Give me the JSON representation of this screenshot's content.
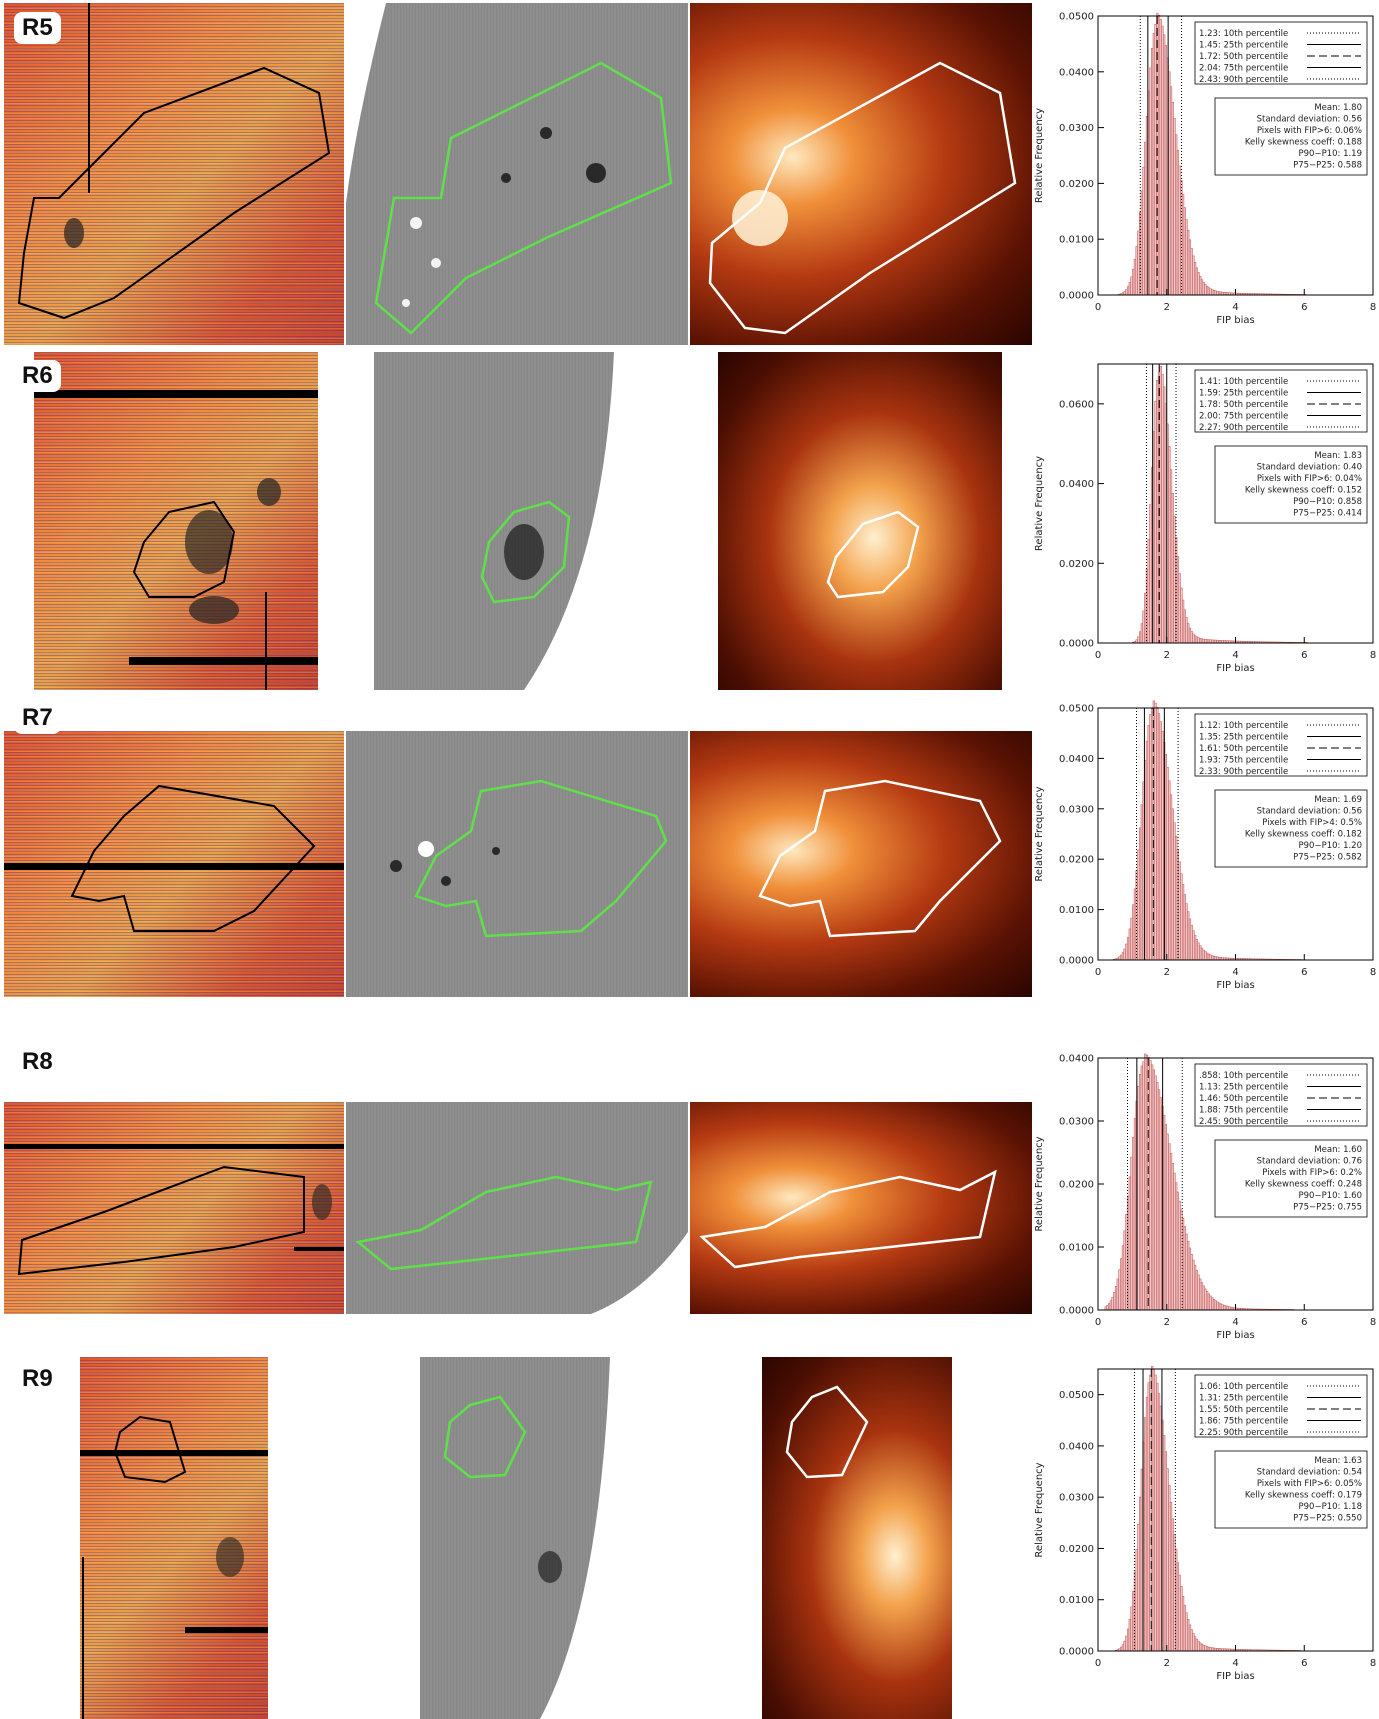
{
  "chart_data": [
    {
      "region": "R5",
      "type": "bar",
      "ylabel": "Relative Frequency",
      "xlabel": "FIP bias",
      "xlim": [
        0,
        8
      ],
      "ylim": [
        0,
        0.05
      ],
      "xticks": [
        "0",
        "2",
        "4",
        "6",
        "8"
      ],
      "yticks": [
        "0.0000",
        "0.0100",
        "0.0200",
        "0.0300",
        "0.0400",
        "0.0500"
      ],
      "percentiles": [
        {
          "value": 1.23,
          "text": "1.23: 10th percentile",
          "style": "dotted"
        },
        {
          "value": 1.45,
          "text": "1.45: 25th percentile",
          "style": "solid"
        },
        {
          "value": 1.72,
          "text": "1.72: 50th percentile",
          "style": "dashed"
        },
        {
          "value": 2.04,
          "text": "2.04: 75th percentile",
          "style": "solid"
        },
        {
          "value": 2.43,
          "text": "2.43: 90th percentile",
          "style": "dotted"
        }
      ],
      "stats": [
        "Mean: 1.80",
        "Standard deviation: 0.56",
        "Pixels with FIP>6: 0.06%",
        "Kelly skewness coeff: 0.188",
        "P90−P10: 1.19",
        "P75−P25: 0.588"
      ],
      "mode": 1.72,
      "peak": 0.049,
      "sigma_left": 0.32,
      "sigma_right": 0.52
    },
    {
      "region": "R6",
      "type": "bar",
      "ylabel": "Relative Frequency",
      "xlabel": "FIP bias",
      "xlim": [
        0,
        8
      ],
      "ylim": [
        0,
        0.07
      ],
      "xticks": [
        "0",
        "2",
        "4",
        "6",
        "8"
      ],
      "yticks": [
        "0.0000",
        "0.0200",
        "0.0400",
        "0.0600"
      ],
      "percentiles": [
        {
          "value": 1.41,
          "text": "1.41: 10th percentile",
          "style": "dotted"
        },
        {
          "value": 1.59,
          "text": "1.59: 25th percentile",
          "style": "solid"
        },
        {
          "value": 1.78,
          "text": "1.78: 50th percentile",
          "style": "dashed"
        },
        {
          "value": 2.0,
          "text": "2.00: 75th percentile",
          "style": "solid"
        },
        {
          "value": 2.27,
          "text": "2.27: 90th percentile",
          "style": "dotted"
        }
      ],
      "stats": [
        "Mean: 1.83",
        "Standard deviation: 0.40",
        "Pixels with FIP>6: 0.04%",
        "Kelly skewness coeff: 0.152",
        "P90−P10: 0.858",
        "P75−P25: 0.414"
      ],
      "mode": 1.78,
      "peak": 0.068,
      "sigma_left": 0.22,
      "sigma_right": 0.35
    },
    {
      "region": "R7",
      "type": "bar",
      "ylabel": "Relative Frequency",
      "xlabel": "FIP bias",
      "xlim": [
        0,
        8
      ],
      "ylim": [
        0,
        0.05
      ],
      "xticks": [
        "0",
        "2",
        "4",
        "6",
        "8"
      ],
      "yticks": [
        "0.0000",
        "0.0100",
        "0.0200",
        "0.0300",
        "0.0400",
        "0.0500"
      ],
      "percentiles": [
        {
          "value": 1.12,
          "text": "1.12: 10th percentile",
          "style": "dotted"
        },
        {
          "value": 1.35,
          "text": "1.35: 25th percentile",
          "style": "solid"
        },
        {
          "value": 1.61,
          "text": "1.61: 50th percentile",
          "style": "dashed"
        },
        {
          "value": 1.93,
          "text": "1.93: 75th percentile",
          "style": "solid"
        },
        {
          "value": 2.33,
          "text": "2.33: 90th percentile",
          "style": "dotted"
        }
      ],
      "stats": [
        "Mean: 1.69",
        "Standard deviation: 0.56",
        "Pixels with FIP>4: 0.5%",
        "Kelly skewness coeff: 0.182",
        "P90−P10: 1.20",
        "P75−P25: 0.582"
      ],
      "mode": 1.6,
      "peak": 0.05,
      "sigma_left": 0.33,
      "sigma_right": 0.55
    },
    {
      "region": "R8",
      "type": "bar",
      "ylabel": "Relative Frequency",
      "xlabel": "FIP bias",
      "xlim": [
        0,
        8
      ],
      "ylim": [
        0,
        0.04
      ],
      "xticks": [
        "0",
        "2",
        "4",
        "6",
        "8"
      ],
      "yticks": [
        "0.0000",
        "0.0100",
        "0.0200",
        "0.0300",
        "0.0400"
      ],
      "percentiles": [
        {
          "value": 0.858,
          "text": ".858: 10th percentile",
          "style": "dotted"
        },
        {
          "value": 1.13,
          "text": "1.13: 25th percentile",
          "style": "solid"
        },
        {
          "value": 1.46,
          "text": "1.46: 50th percentile",
          "style": "dashed"
        },
        {
          "value": 1.88,
          "text": "1.88: 75th percentile",
          "style": "solid"
        },
        {
          "value": 2.45,
          "text": "2.45: 90th percentile",
          "style": "dotted"
        }
      ],
      "stats": [
        "Mean: 1.60",
        "Standard deviation: 0.76",
        "Pixels with FIP>6: 0.2%",
        "Kelly skewness coeff: 0.248",
        "P90−P10: 1.60",
        "P75−P25: 0.755"
      ],
      "mode": 1.35,
      "peak": 0.0395,
      "sigma_left": 0.38,
      "sigma_right": 0.78
    },
    {
      "region": "R9",
      "type": "bar",
      "ylabel": "Relative Frequency",
      "xlabel": "FIP bias",
      "xlim": [
        0,
        8
      ],
      "ylim": [
        0,
        0.055
      ],
      "xticks": [
        "0",
        "2",
        "4",
        "6",
        "8"
      ],
      "yticks": [
        "0.0000",
        "0.0100",
        "0.0200",
        "0.0300",
        "0.0400",
        "0.0500"
      ],
      "percentiles": [
        {
          "value": 1.06,
          "text": "1.06: 10th percentile",
          "style": "dotted"
        },
        {
          "value": 1.31,
          "text": "1.31: 25th percentile",
          "style": "solid"
        },
        {
          "value": 1.55,
          "text": "1.55: 50th percentile",
          "style": "dashed"
        },
        {
          "value": 1.86,
          "text": "1.86: 75th percentile",
          "style": "solid"
        },
        {
          "value": 2.25,
          "text": "2.25: 90th percentile",
          "style": "dotted"
        }
      ],
      "stats": [
        "Mean: 1.63",
        "Standard deviation: 0.54",
        "Pixels with FIP>6: 0.05%",
        "Kelly skewness coeff: 0.179",
        "P90−P10: 1.18",
        "P75−P25: 0.550"
      ],
      "mode": 1.55,
      "peak": 0.054,
      "sigma_left": 0.3,
      "sigma_right": 0.5
    }
  ],
  "colors": {
    "bar_fill": "#f2c9c9",
    "bar_edge": "#c05050",
    "contour_fip": "#000000",
    "contour_mag": "#5fe04a",
    "contour_euv": "#ffffff"
  }
}
